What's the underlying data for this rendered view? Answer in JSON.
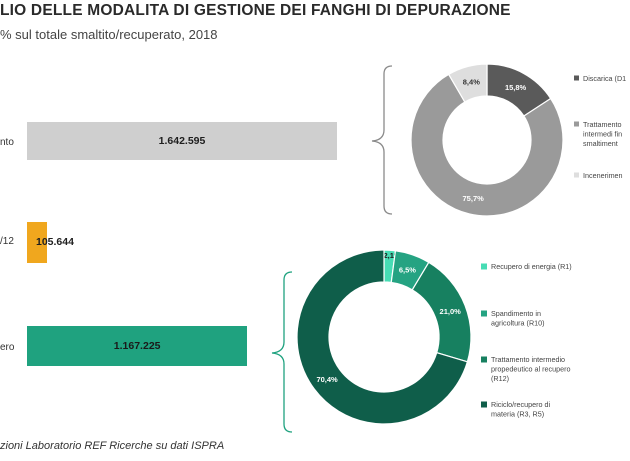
{
  "header": {
    "title": "LIO DELLE MODALITA DI GESTIONE DEI FANGHI DI DEPURAZIONE",
    "subtitle": "% sul totale smaltito/recuperato, 2018"
  },
  "source": "zioni Laboratorio REF Ricerche su dati ISPRA",
  "chart_data": [
    {
      "type": "bar",
      "orientation": "horizontal",
      "categories": [
        "nto",
        "/12",
        "ero"
      ],
      "values": [
        1642595,
        105644,
        1167225
      ],
      "value_labels": [
        "1.642.595",
        "105.644",
        "1.167.225"
      ],
      "colors": [
        "#cfcfcf",
        "#f0a71e",
        "#1fa27f"
      ]
    },
    {
      "type": "pie",
      "style": "donut",
      "slice_labels": [
        "15,8%",
        "75,7%",
        "8,4%"
      ],
      "values": [
        15.8,
        75.7,
        8.4
      ],
      "colors": [
        "#5a5a5a",
        "#9a9a9a",
        "#dedede"
      ],
      "legend": [
        "Discarica (D1",
        "Trattamento\nintermedi fin\nsmaltiment",
        "Incenerimen"
      ],
      "legend_position": "right"
    },
    {
      "type": "pie",
      "style": "donut",
      "slice_labels": [
        "2,1%",
        "6,5%",
        "21,0%",
        "70,4%"
      ],
      "values": [
        2.1,
        6.5,
        21.0,
        70.4
      ],
      "colors": [
        "#47dcb4",
        "#25a382",
        "#178060",
        "#0f5e4a"
      ],
      "legend": [
        "Recupero di energia (R1)",
        "Spandimento in\nagricoltura (R10)",
        "Trattamento intermedio\npropedeutico al recupero\n(R12)",
        "Riciclo/recupero di\nmateria (R3, R5)"
      ],
      "legend_position": "right"
    }
  ]
}
